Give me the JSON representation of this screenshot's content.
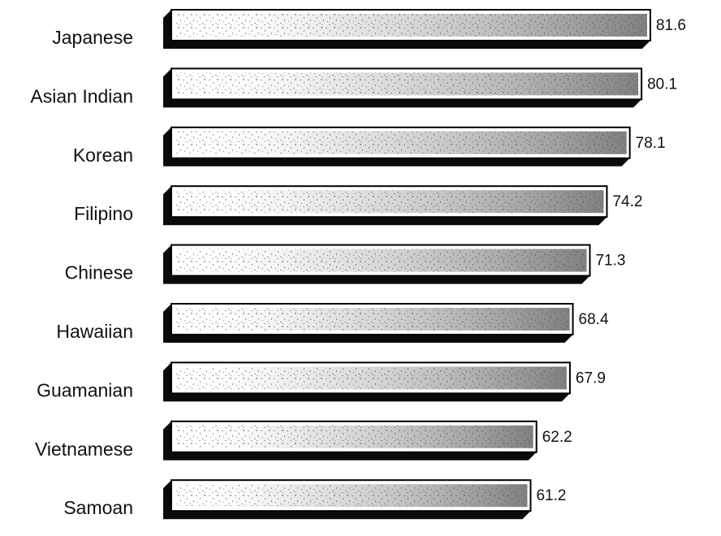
{
  "chart_data": {
    "type": "bar",
    "orientation": "horizontal",
    "style": "3d-shaded",
    "categories": [
      "Japanese",
      "Asian Indian",
      "Korean",
      "Filipino",
      "Chinese",
      "Hawaiian",
      "Guamanian",
      "Vietnamese",
      "Samoan"
    ],
    "values": [
      81.6,
      80.1,
      78.1,
      74.2,
      71.3,
      68.4,
      67.9,
      62.2,
      61.2
    ],
    "data_labels": [
      "81.6",
      "80.1",
      "78.1",
      "74.2",
      "71.3",
      "68.4",
      "67.9",
      "62.2",
      "61.2"
    ],
    "grid": false,
    "legend": "none"
  }
}
